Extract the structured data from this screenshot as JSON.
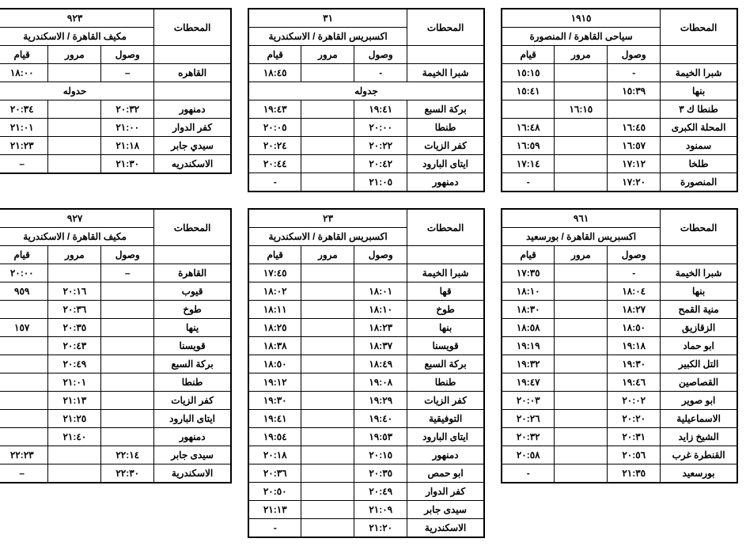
{
  "labels": {
    "stations": "المحطات",
    "arrive": "وصول",
    "pass": "مرور",
    "depart": "قيام"
  },
  "tables": [
    {
      "id": "t1915",
      "train_no": "١٩١٥",
      "route": "سياحى القاهرة / المنصورة",
      "rows": [
        {
          "station": "شبرا الخيمة",
          "arr": "-",
          "pass": "",
          "dep": "١٥:١٥"
        },
        {
          "station": "بنها",
          "arr": "١٥:٣٩",
          "pass": "",
          "dep": "١٥:٤١"
        },
        {
          "station": "طنطا ك ٣",
          "arr": "",
          "pass": "١٦:١٥",
          "dep": ""
        },
        {
          "station": "المحلة الكبرى",
          "arr": "١٦:٤٥",
          "pass": "",
          "dep": "١٦:٤٨"
        },
        {
          "station": "سمنود",
          "arr": "١٦:٥٧",
          "pass": "",
          "dep": "١٦:٥٩"
        },
        {
          "station": "طلخا",
          "arr": "١٧:١٢",
          "pass": "",
          "dep": "١٧:١٤"
        },
        {
          "station": "المنصورة",
          "arr": "١٧:٢٠",
          "pass": "",
          "dep": "-"
        }
      ]
    },
    {
      "id": "t31",
      "train_no": "٣١",
      "route": "اكسبريس القاهرة / الاسكندرية",
      "rows": [
        {
          "station": "شبرا الخيمة",
          "arr": "-",
          "pass": "",
          "dep": "١٨:٤٥"
        },
        {
          "type": "span",
          "label": "جدوله"
        },
        {
          "station": "بركة السبع",
          "arr": "١٩:٤١",
          "pass": "",
          "dep": "١٩:٤٣"
        },
        {
          "station": "طنطا",
          "arr": "٢٠:٠٠",
          "pass": "",
          "dep": "٢٠:٠٥"
        },
        {
          "station": "كفر الزيات",
          "arr": "٢٠:٢٢",
          "pass": "",
          "dep": "٢٠:٢٤"
        },
        {
          "station": "ايتاى البارود",
          "arr": "٢٠:٤٢",
          "pass": "",
          "dep": "٢٠:٤٤"
        },
        {
          "station": "دمنهور",
          "arr": "٢١:٠٥",
          "pass": "",
          "dep": "-"
        }
      ]
    },
    {
      "id": "t923",
      "train_no": "٩٢٣",
      "route": "مكيف القاهرة / الاسكندرية",
      "rows": [
        {
          "station": "القاهره",
          "arr": "–",
          "pass": "",
          "dep": "١٨:٠٠"
        },
        {
          "type": "span3",
          "label": "حدوله"
        },
        {
          "station": "دمنهور",
          "arr": "٢٠:٣٢",
          "pass": "",
          "dep": "٢٠:٣٤"
        },
        {
          "station": "كفر الدوار",
          "arr": "٢١:٠٠",
          "pass": "",
          "dep": "٢١:٠١"
        },
        {
          "station": "سيدي جابر",
          "arr": "٢١:١٨",
          "pass": "",
          "dep": "٢١:٢٣"
        },
        {
          "station": "الاسكندريه",
          "arr": "٢١:٣٠",
          "pass": "",
          "dep": "–"
        }
      ]
    },
    {
      "id": "t961",
      "train_no": "٩٦١",
      "route": "اكسبريس القاهرة / بورسعيد",
      "rows": [
        {
          "station": "شبرا الخيمة",
          "arr": "-",
          "pass": "",
          "dep": "١٧:٣٥"
        },
        {
          "station": "بنها",
          "arr": "١٨:٠٤",
          "pass": "",
          "dep": "١٨:١٠"
        },
        {
          "station": "منية القمح",
          "arr": "١٨:٢٧",
          "pass": "",
          "dep": "١٨:٣٠"
        },
        {
          "station": "الزقازيق",
          "arr": "١٨:٥٠",
          "pass": "",
          "dep": "١٨:٥٨"
        },
        {
          "station": "ابو حماد",
          "arr": "١٩:١٨",
          "pass": "",
          "dep": "١٩:١٩"
        },
        {
          "station": "التل الكبير",
          "arr": "١٩:٣٠",
          "pass": "",
          "dep": "١٩:٣٢"
        },
        {
          "station": "القصاصين",
          "arr": "١٩:٤٦",
          "pass": "",
          "dep": "١٩:٤٧"
        },
        {
          "station": "ابو صوير",
          "arr": "٢٠:٠٢",
          "pass": "",
          "dep": "٢٠:٠٣"
        },
        {
          "station": "الاسماعيلية",
          "arr": "٢٠:٢٠",
          "pass": "",
          "dep": "٢٠:٢٦"
        },
        {
          "station": "الشيخ زايد",
          "arr": "٢٠:٣١",
          "pass": "",
          "dep": "٢٠:٣٢"
        },
        {
          "station": "القنطرة غرب",
          "arr": "٢٠:٥٦",
          "pass": "",
          "dep": "٢٠:٥٨"
        },
        {
          "station": "بورسعيد",
          "arr": "٢١:٣٥",
          "pass": "",
          "dep": "-"
        }
      ]
    },
    {
      "id": "t23",
      "train_no": "٢٣",
      "route": "اكسبريس القاهرة / الاسكندرية",
      "rows": [
        {
          "station": "شبرا الخيمة",
          "arr": "",
          "pass": "",
          "dep": "١٧:٤٥"
        },
        {
          "station": "قها",
          "arr": "١٨:٠١",
          "pass": "",
          "dep": "١٨:٠٢"
        },
        {
          "station": "طوخ",
          "arr": "١٨:١٠",
          "pass": "",
          "dep": "١٨:١١"
        },
        {
          "station": "بنها",
          "arr": "١٨:٢٣",
          "pass": "",
          "dep": "١٨:٢٥"
        },
        {
          "station": "قويسنا",
          "arr": "١٨:٣٧",
          "pass": "",
          "dep": "١٨:٣٨"
        },
        {
          "station": "بركة السبع",
          "arr": "١٨:٤٩",
          "pass": "",
          "dep": "١٨:٥٠"
        },
        {
          "station": "طنطا",
          "arr": "١٩:٠٨",
          "pass": "",
          "dep": "١٩:١٢"
        },
        {
          "station": "كفر الزيات",
          "arr": "١٩:٢٩",
          "pass": "",
          "dep": "١٩:٣٠"
        },
        {
          "station": "التوفيقية",
          "arr": "١٩:٤٠",
          "pass": "",
          "dep": "١٩:٤١"
        },
        {
          "station": "ايتاى البارود",
          "arr": "١٩:٥٣",
          "pass": "",
          "dep": "١٩:٥٤"
        },
        {
          "station": "دمنهور",
          "arr": "٢٠:١٥",
          "pass": "",
          "dep": "٢٠:١٨"
        },
        {
          "station": "ابو حمص",
          "arr": "٢٠:٣٥",
          "pass": "",
          "dep": "٢٠:٣٦"
        },
        {
          "station": "كفر الدوار",
          "arr": "٢٠:٤٩",
          "pass": "",
          "dep": "٢٠:٥٠"
        },
        {
          "station": "سيدى جابر",
          "arr": "٢١:٠٩",
          "pass": "",
          "dep": "٢١:١٣"
        },
        {
          "station": "الاسكندرية",
          "arr": "٢١:٢٠",
          "pass": "",
          "dep": "-"
        }
      ]
    },
    {
      "id": "t927",
      "train_no": "٩٢٧",
      "route": "مكيف القاهرة / الاسكندرية",
      "rows": [
        {
          "station": "القاهرة",
          "arr": "–",
          "pass": "",
          "dep": "٢٠:٠٠"
        },
        {
          "station": "قيوب",
          "arr": "",
          "pass": "٢٠:١٦",
          "dep": "٩٥٩"
        },
        {
          "station": "طوخ",
          "arr": "",
          "pass": "٢٠:٣٦",
          "dep": ""
        },
        {
          "station": "ينها",
          "arr": "",
          "pass": "٢٠:٣٥",
          "dep": "١٥٧"
        },
        {
          "station": "قويسنا",
          "arr": "",
          "pass": "٢٠:٤٣",
          "dep": ""
        },
        {
          "station": "بركة السبع",
          "arr": "",
          "pass": "٢٠:٤٩",
          "dep": ""
        },
        {
          "station": "طنطا",
          "arr": "",
          "pass": "٢١:٠١",
          "dep": ""
        },
        {
          "station": "كفر الزيات",
          "arr": "",
          "pass": "٢١:١٣",
          "dep": ""
        },
        {
          "station": "ايتاى البارود",
          "arr": "",
          "pass": "٢١:٢٥",
          "dep": ""
        },
        {
          "station": "دمنهور",
          "arr": "",
          "pass": "٢١:٤٠",
          "dep": ""
        },
        {
          "station": "سيدى جابر",
          "arr": "٢٢:١٤",
          "pass": "",
          "dep": "٢٢:٢٣"
        },
        {
          "station": "الاسكندرية",
          "arr": "٢٢:٣٠",
          "pass": "",
          "dep": "–"
        }
      ]
    }
  ],
  "colors": {
    "border": "#000000",
    "bg": "#ffffff",
    "text": "#000000"
  }
}
